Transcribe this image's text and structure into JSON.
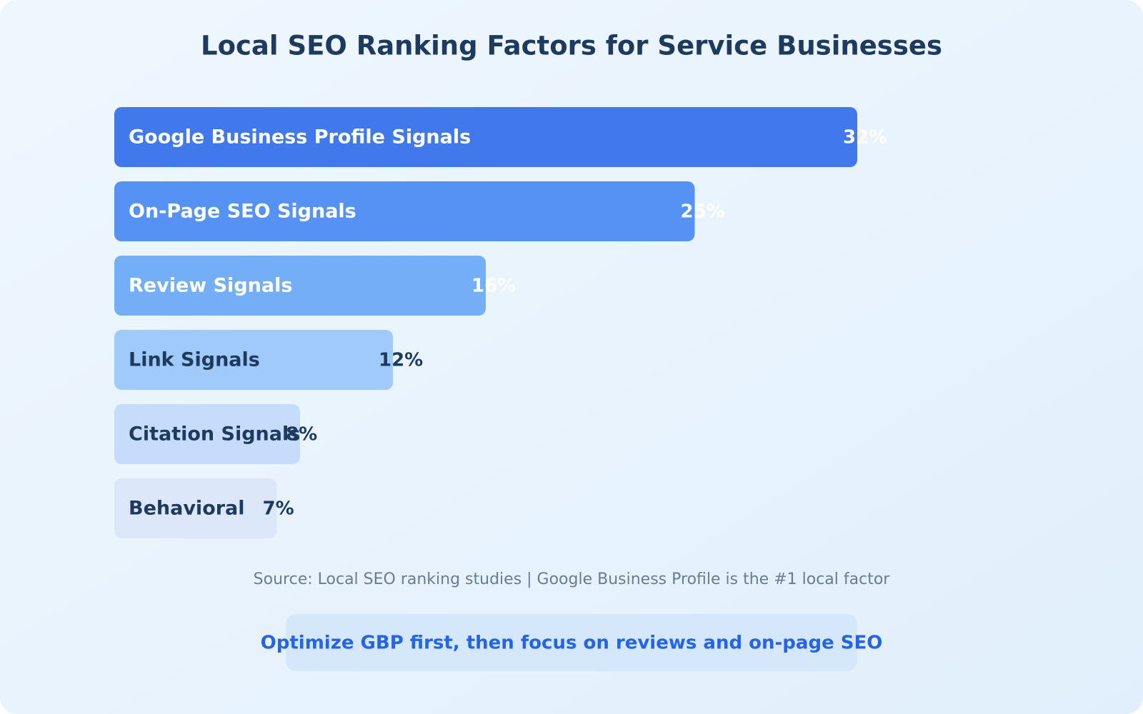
{
  "chart_data": {
    "type": "bar",
    "orientation": "horizontal",
    "title": "Local SEO Ranking Factors for Service Businesses",
    "categories": [
      "Google Business Profile Signals",
      "On-Page SEO Signals",
      "Review Signals",
      "Link Signals",
      "Citation Signals",
      "Behavioral"
    ],
    "values": [
      32,
      25,
      16,
      12,
      8,
      7
    ],
    "value_labels": [
      "32%",
      "25%",
      "16%",
      "12%",
      "8%",
      "7%"
    ],
    "colors": [
      "#4178eb",
      "#5592f3",
      "#74aef7",
      "#9fcaf9",
      "#c6dcfa",
      "#dce8fa"
    ],
    "source": "Source: Local SEO ranking studies | Google Business Profile is the #1 local factor",
    "annotation": "Optimize GBP first, then focus on reviews and on-page SEO"
  }
}
